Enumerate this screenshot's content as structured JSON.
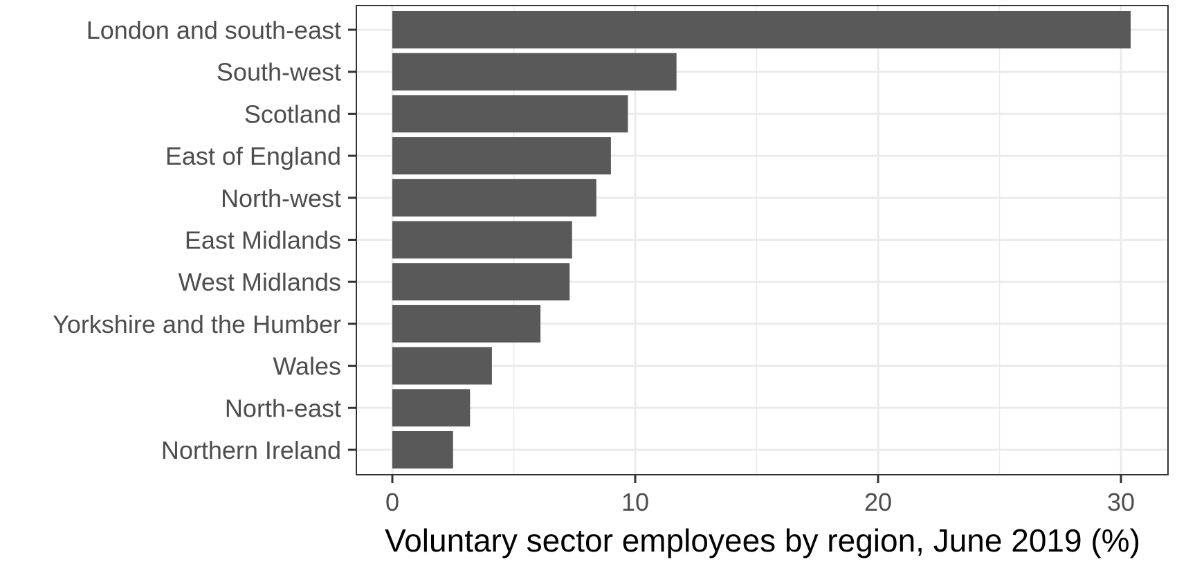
{
  "chart_data": {
    "type": "bar",
    "orientation": "horizontal",
    "categories": [
      "London and south-east",
      "South-west",
      "Scotland",
      "East of England",
      "North-west",
      "East Midlands",
      "West Midlands",
      "Yorkshire and the Humber",
      "Wales",
      "North-east",
      "Northern Ireland"
    ],
    "values": [
      30.4,
      11.7,
      9.7,
      9.0,
      8.4,
      7.4,
      7.3,
      6.1,
      4.1,
      3.2,
      2.5
    ],
    "title": "",
    "xlabel": "Voluntary sector employees by region, June 2019 (%)",
    "ylabel": "",
    "xlim": [
      -1.5,
      32.1
    ],
    "x_ticks": [
      0,
      10,
      20,
      30
    ],
    "x_tick_labels": [
      "0",
      "10",
      "20",
      "30"
    ],
    "grid": true,
    "legend": "none",
    "bar_color": "#595959",
    "grid_color": "#ebebeb",
    "text_color": "#4d4d4d",
    "panel_border_color": "#333333"
  }
}
